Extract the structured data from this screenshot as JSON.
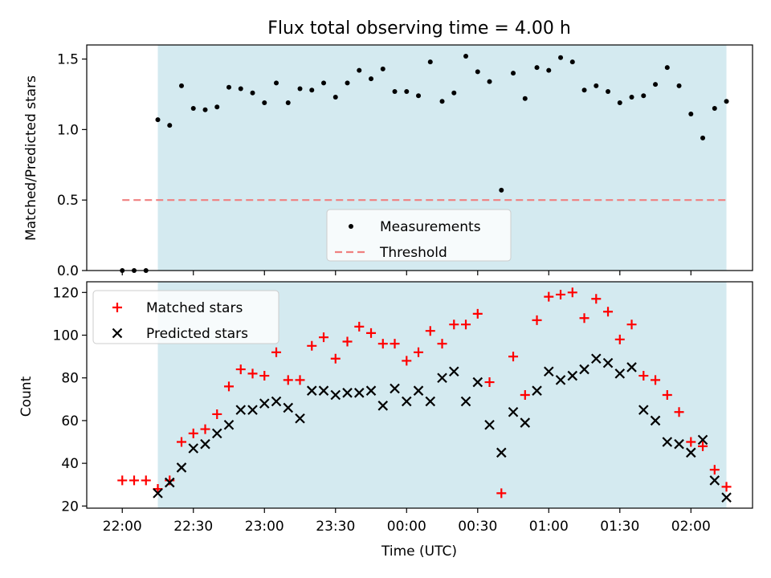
{
  "chart_data": [
    {
      "type": "scatter",
      "title": "Flux total observing time = 4.00 h",
      "ylabel": "Matched/Predicted stars",
      "xlabel": "",
      "ylim": [
        0,
        1.6
      ],
      "yticks": [
        0.0,
        0.5,
        1.0,
        1.5
      ],
      "ytick_labels": [
        "0.0",
        "0.5",
        "1.0",
        "1.5"
      ],
      "shaded_interval": [
        "22:15",
        "02:15"
      ],
      "shade_color": "#d4eaf0",
      "legend": {
        "placement": "lower-center",
        "entries": [
          "Measurements",
          "Threshold"
        ]
      },
      "series": [
        {
          "name": "Measurements",
          "color": "#000000",
          "marker": "dot",
          "x": [
            "22:00",
            "22:05",
            "22:10",
            "22:15",
            "22:20",
            "22:25",
            "22:30",
            "22:35",
            "22:40",
            "22:45",
            "22:50",
            "22:55",
            "23:00",
            "23:05",
            "23:10",
            "23:15",
            "23:20",
            "23:25",
            "23:30",
            "23:35",
            "23:40",
            "23:45",
            "23:50",
            "23:55",
            "00:00",
            "00:05",
            "00:10",
            "00:15",
            "00:20",
            "00:25",
            "00:30",
            "00:35",
            "00:40",
            "00:45",
            "00:50",
            "00:55",
            "01:00",
            "01:05",
            "01:10",
            "01:15",
            "01:20",
            "01:25",
            "01:30",
            "01:35",
            "01:40",
            "01:45",
            "01:50",
            "01:55",
            "02:00",
            "02:05",
            "02:10",
            "02:15"
          ],
          "values": [
            0.0,
            0.0,
            0.0,
            1.07,
            1.03,
            1.31,
            1.15,
            1.14,
            1.16,
            1.3,
            1.29,
            1.26,
            1.19,
            1.33,
            1.19,
            1.29,
            1.28,
            1.33,
            1.23,
            1.33,
            1.42,
            1.36,
            1.43,
            1.27,
            1.27,
            1.24,
            1.48,
            1.2,
            1.26,
            1.52,
            1.41,
            1.34,
            0.57,
            1.4,
            1.22,
            1.44,
            1.42,
            1.51,
            1.48,
            1.28,
            1.31,
            1.27,
            1.19,
            1.23,
            1.24,
            1.32,
            1.44,
            1.31,
            1.11,
            0.94,
            1.15,
            1.2
          ]
        },
        {
          "name": "Threshold",
          "color": "#f08080",
          "style": "dashed",
          "x": [
            "22:00",
            "02:15"
          ],
          "values": [
            0.5,
            0.5
          ]
        }
      ]
    },
    {
      "type": "scatter",
      "title": "",
      "ylabel": "Count",
      "xlabel": "Time (UTC)",
      "ylim": [
        19,
        125
      ],
      "yticks": [
        20,
        40,
        60,
        80,
        100,
        120
      ],
      "ytick_labels": [
        "20",
        "40",
        "60",
        "80",
        "100",
        "120"
      ],
      "xticks": [
        "22:00",
        "22:30",
        "23:00",
        "23:30",
        "00:00",
        "00:30",
        "01:00",
        "01:30",
        "02:00"
      ],
      "shaded_interval": [
        "22:15",
        "02:15"
      ],
      "shade_color": "#d4eaf0",
      "legend": {
        "placement": "top-left",
        "entries": [
          "Matched stars",
          "Predicted stars"
        ]
      },
      "series": [
        {
          "name": "Matched stars",
          "color": "#ff0000",
          "marker": "plus",
          "x": [
            "22:00",
            "22:05",
            "22:10",
            "22:15",
            "22:20",
            "22:25",
            "22:30",
            "22:35",
            "22:40",
            "22:45",
            "22:50",
            "22:55",
            "23:00",
            "23:05",
            "23:10",
            "23:15",
            "23:20",
            "23:25",
            "23:30",
            "23:35",
            "23:40",
            "23:45",
            "23:50",
            "23:55",
            "00:00",
            "00:05",
            "00:10",
            "00:15",
            "00:20",
            "00:25",
            "00:30",
            "00:35",
            "00:40",
            "00:45",
            "00:50",
            "00:55",
            "01:00",
            "01:05",
            "01:10",
            "01:15",
            "01:20",
            "01:25",
            "01:30",
            "01:35",
            "01:40",
            "01:45",
            "01:50",
            "01:55",
            "02:00",
            "02:05",
            "02:10",
            "02:15"
          ],
          "values": [
            32,
            32,
            32,
            28,
            32,
            50,
            54,
            56,
            63,
            76,
            84,
            82,
            81,
            92,
            79,
            79,
            95,
            99,
            89,
            97,
            104,
            101,
            96,
            96,
            88,
            92,
            102,
            96,
            105,
            105,
            110,
            78,
            26,
            90,
            72,
            107,
            118,
            119,
            120,
            108,
            117,
            111,
            98,
            105,
            81,
            79,
            72,
            64,
            50,
            48,
            37,
            29
          ]
        },
        {
          "name": "Predicted stars",
          "color": "#000000",
          "marker": "x",
          "x": [
            "22:15",
            "22:20",
            "22:25",
            "22:30",
            "22:35",
            "22:40",
            "22:45",
            "22:50",
            "22:55",
            "23:00",
            "23:05",
            "23:10",
            "23:15",
            "23:20",
            "23:25",
            "23:30",
            "23:35",
            "23:40",
            "23:45",
            "23:50",
            "23:55",
            "00:00",
            "00:05",
            "00:10",
            "00:15",
            "00:20",
            "00:25",
            "00:30",
            "00:35",
            "00:40",
            "00:45",
            "00:50",
            "00:55",
            "01:00",
            "01:05",
            "01:10",
            "01:15",
            "01:20",
            "01:25",
            "01:30",
            "01:35",
            "01:40",
            "01:45",
            "01:50",
            "01:55",
            "02:00",
            "02:05",
            "02:10",
            "02:15"
          ],
          "values": [
            26,
            31,
            38,
            47,
            49,
            54,
            58,
            65,
            65,
            68,
            69,
            66,
            61,
            74,
            74,
            72,
            73,
            73,
            74,
            67,
            75,
            69,
            74,
            69,
            80,
            83,
            69,
            78,
            58,
            45,
            64,
            59,
            74,
            83,
            79,
            81,
            84,
            89,
            87,
            82,
            85,
            65,
            60,
            50,
            49,
            45,
            51,
            32,
            24
          ]
        }
      ]
    }
  ]
}
